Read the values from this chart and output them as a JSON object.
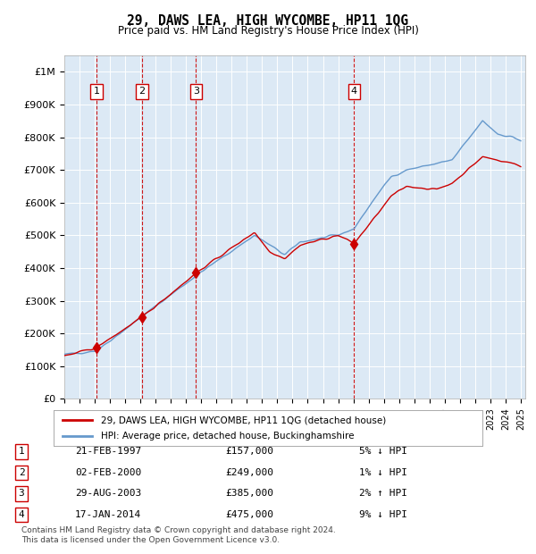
{
  "title": "29, DAWS LEA, HIGH WYCOMBE, HP11 1QG",
  "subtitle": "Price paid vs. HM Land Registry's House Price Index (HPI)",
  "hpi_color": "#6699cc",
  "price_color": "#cc0000",
  "background_color": "#dce9f5",
  "grid_color": "#ffffff",
  "ylim": [
    0,
    1050000
  ],
  "yticks": [
    0,
    100000,
    200000,
    300000,
    400000,
    500000,
    600000,
    700000,
    800000,
    900000,
    1000000
  ],
  "ytick_labels": [
    "£0",
    "£100K",
    "£200K",
    "£300K",
    "£400K",
    "£500K",
    "£600K",
    "£700K",
    "£800K",
    "£900K",
    "£1M"
  ],
  "sales": [
    {
      "num": 1,
      "date": "21-FEB-1997",
      "year": 1997.13,
      "price": 157000,
      "pct": "5%",
      "dir": "↓"
    },
    {
      "num": 2,
      "date": "02-FEB-2000",
      "year": 2000.09,
      "price": 249000,
      "pct": "1%",
      "dir": "↓"
    },
    {
      "num": 3,
      "date": "29-AUG-2003",
      "year": 2003.66,
      "price": 385000,
      "pct": "2%",
      "dir": "↑"
    },
    {
      "num": 4,
      "date": "17-JAN-2014",
      "year": 2014.05,
      "price": 475000,
      "pct": "9%",
      "dir": "↓"
    }
  ],
  "legend_line1": "29, DAWS LEA, HIGH WYCOMBE, HP11 1QG (detached house)",
  "legend_line2": "HPI: Average price, detached house, Buckinghamshire",
  "footnote": "Contains HM Land Registry data © Crown copyright and database right 2024.\nThis data is licensed under the Open Government Licence v3.0.",
  "table_rows": [
    [
      "1",
      "21-FEB-1997",
      "£157,000",
      "5% ↓ HPI"
    ],
    [
      "2",
      "02-FEB-2000",
      "£249,000",
      "1% ↓ HPI"
    ],
    [
      "3",
      "29-AUG-2003",
      "£385,000",
      "2% ↑ HPI"
    ],
    [
      "4",
      "17-JAN-2014",
      "£475,000",
      "9% ↓ HPI"
    ]
  ]
}
